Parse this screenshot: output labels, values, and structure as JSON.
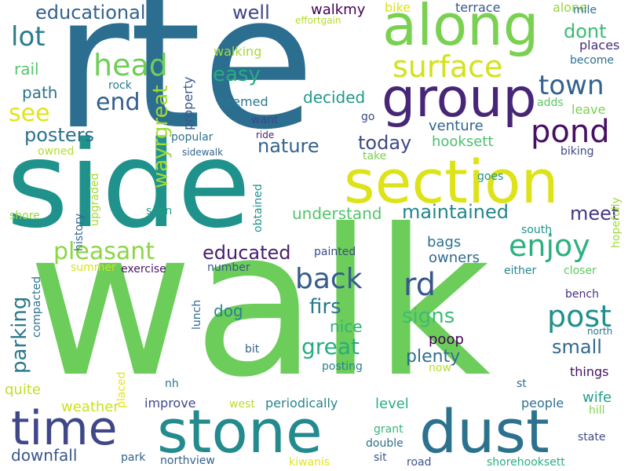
{
  "words": [
    {
      "text": "walk",
      "color": "#6ccd5a"
    },
    {
      "text": "rte",
      "color": "#2c6e8f"
    },
    {
      "text": "side",
      "color": "#20928c"
    },
    {
      "text": "stone",
      "color": "#238a8d"
    },
    {
      "text": "dust",
      "color": "#2c728e"
    },
    {
      "text": "section",
      "color": "#dde318"
    },
    {
      "text": "along",
      "color": "#7ad151"
    },
    {
      "text": "group",
      "color": "#482677"
    },
    {
      "text": "time",
      "color": "#3f4788"
    },
    {
      "text": "surface",
      "color": "#d2e21b"
    },
    {
      "text": "head",
      "color": "#6ece58"
    },
    {
      "text": "lot",
      "color": "#287d8e"
    },
    {
      "text": "end",
      "color": "#34608d"
    },
    {
      "text": "see",
      "color": "#e2e418"
    },
    {
      "text": "town",
      "color": "#34618d"
    },
    {
      "text": "pond",
      "color": "#471063"
    },
    {
      "text": "enjoy",
      "color": "#2cb17e"
    },
    {
      "text": "back",
      "color": "#365c8d"
    },
    {
      "text": "rd",
      "color": "#39568c"
    },
    {
      "text": "post",
      "color": "#21908d"
    },
    {
      "text": "pleasant",
      "color": "#8bd646"
    },
    {
      "text": "parking",
      "color": "#2a788e"
    },
    {
      "text": "educational",
      "color": "#33638d"
    },
    {
      "text": "easy",
      "color": "#27ad81"
    },
    {
      "text": "well",
      "color": "#414487"
    },
    {
      "text": "dont",
      "color": "#3bbb75"
    },
    {
      "text": "posters",
      "color": "#2d718e"
    },
    {
      "text": "nature",
      "color": "#33638d"
    },
    {
      "text": "today",
      "color": "#3e4a89"
    },
    {
      "text": "maintained",
      "color": "#24868e"
    },
    {
      "text": "educated",
      "color": "#481f70"
    },
    {
      "text": "meet",
      "color": "#453781"
    },
    {
      "text": "understand",
      "color": "#52c569"
    },
    {
      "text": "wayrgreat",
      "color": "#a2da37"
    },
    {
      "text": "firs",
      "color": "#2a788e"
    },
    {
      "text": "great",
      "color": "#26ad81"
    },
    {
      "text": "signs",
      "color": "#3dbc74"
    },
    {
      "text": "small",
      "color": "#31688e"
    },
    {
      "text": "plenty",
      "color": "#2e6f8e"
    },
    {
      "text": "poop",
      "color": "#440154"
    },
    {
      "text": "dog",
      "color": "#25848e"
    },
    {
      "text": "nice",
      "color": "#2db27d"
    },
    {
      "text": "walkmy",
      "color": "#440154"
    },
    {
      "text": "decided",
      "color": "#1f988b"
    },
    {
      "text": "hooksett",
      "color": "#4ac16d"
    },
    {
      "text": "venture",
      "color": "#33638d"
    },
    {
      "text": "path",
      "color": "#2c728e"
    },
    {
      "text": "rail",
      "color": "#56c667"
    },
    {
      "text": "rock",
      "color": "#287c8e"
    },
    {
      "text": "walking",
      "color": "#a5db36"
    },
    {
      "text": "seemed",
      "color": "#2a788e"
    },
    {
      "text": "want",
      "color": "#3f4788"
    },
    {
      "text": "property",
      "color": "#38588c"
    },
    {
      "text": "popular",
      "color": "#2c738e"
    },
    {
      "text": "terrace",
      "color": "#39568c"
    },
    {
      "text": "bike",
      "color": "#dde318"
    },
    {
      "text": "alone",
      "color": "#95d840"
    },
    {
      "text": "mile",
      "color": "#2c738e"
    },
    {
      "text": "places",
      "color": "#472d7b"
    },
    {
      "text": "become",
      "color": "#2c728e"
    },
    {
      "text": "adds",
      "color": "#5cc863"
    },
    {
      "text": "leave",
      "color": "#7ad151"
    },
    {
      "text": "effortgain",
      "color": "#b5de2b"
    },
    {
      "text": "go",
      "color": "#3e4a89"
    },
    {
      "text": "ride",
      "color": "#481b6d"
    },
    {
      "text": "sidewalk",
      "color": "#33638d"
    },
    {
      "text": "obtained",
      "color": "#21908d"
    },
    {
      "text": "take",
      "color": "#7ad151"
    },
    {
      "text": "goes",
      "color": "#21918c"
    },
    {
      "text": "biking",
      "color": "#3f4788"
    },
    {
      "text": "owned",
      "color": "#b2dd2d"
    },
    {
      "text": "history",
      "color": "#31688e"
    },
    {
      "text": "upgraded",
      "color": "#a8db34"
    },
    {
      "text": "soon",
      "color": "#1f9e89"
    },
    {
      "text": "shore",
      "color": "#95d840"
    },
    {
      "text": "south",
      "color": "#1f968b"
    },
    {
      "text": "hopefully",
      "color": "#a0da39"
    },
    {
      "text": "owners",
      "color": "#30698e"
    },
    {
      "text": "bags",
      "color": "#2c728e"
    },
    {
      "text": "painted",
      "color": "#3e4989"
    },
    {
      "text": "number",
      "color": "#38588c"
    },
    {
      "text": "summer",
      "color": "#d8e219"
    },
    {
      "text": "exercise",
      "color": "#471365"
    },
    {
      "text": "closer",
      "color": "#5ec962"
    },
    {
      "text": "either",
      "color": "#24868e"
    },
    {
      "text": "compacted",
      "color": "#2c728e"
    },
    {
      "text": "lunch",
      "color": "#31688e"
    },
    {
      "text": "bench",
      "color": "#46307e"
    },
    {
      "text": "north",
      "color": "#2c728e"
    },
    {
      "text": "bit",
      "color": "#33638d"
    },
    {
      "text": "posting",
      "color": "#26828e"
    },
    {
      "text": "now",
      "color": "#b5de2b"
    },
    {
      "text": "things",
      "color": "#471063"
    },
    {
      "text": "quite",
      "color": "#c2df23"
    },
    {
      "text": "placed",
      "color": "#e5e419"
    },
    {
      "text": "nh",
      "color": "#2a788e"
    },
    {
      "text": "st",
      "color": "#2e6e8e"
    },
    {
      "text": "weather",
      "color": "#cae11f"
    },
    {
      "text": "improve",
      "color": "#3e4a89"
    },
    {
      "text": "west",
      "color": "#b8de29"
    },
    {
      "text": "periodically",
      "color": "#25848e"
    },
    {
      "text": "level",
      "color": "#29af7f"
    },
    {
      "text": "wife",
      "color": "#1fa088"
    },
    {
      "text": "people",
      "color": "#2c728e"
    },
    {
      "text": "hill",
      "color": "#84d44b"
    },
    {
      "text": "downfall",
      "color": "#39568c"
    },
    {
      "text": "park",
      "color": "#33638d"
    },
    {
      "text": "northview",
      "color": "#34608d"
    },
    {
      "text": "grant",
      "color": "#35b779"
    },
    {
      "text": "double",
      "color": "#2d708e"
    },
    {
      "text": "sit",
      "color": "#38588c"
    },
    {
      "text": "kiwanis",
      "color": "#e5e419"
    },
    {
      "text": "road",
      "color": "#3b528b"
    },
    {
      "text": "state",
      "color": "#3e4a89"
    },
    {
      "text": "shorehooksett",
      "color": "#2ab07f"
    }
  ]
}
